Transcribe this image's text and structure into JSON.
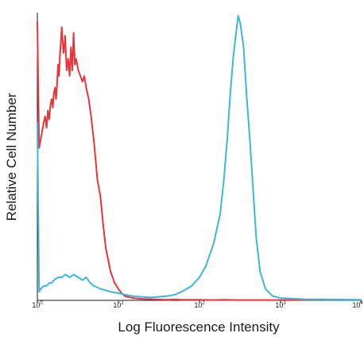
{
  "chart_data": {
    "type": "line",
    "title": "",
    "xlabel": "Log Fluorescence Intensity",
    "ylabel": "Relative Cell Number",
    "x_scale": "log",
    "xlim": [
      1,
      10000
    ],
    "ylim": [
      0,
      1.0
    ],
    "grid": false,
    "legend": "none",
    "x_ticks": [
      {
        "base": "10",
        "exp": "0"
      },
      {
        "base": "10",
        "exp": "1"
      },
      {
        "base": "10",
        "exp": "2"
      },
      {
        "base": "10",
        "exp": "3"
      },
      {
        "base": "10",
        "exp": "4"
      }
    ],
    "series": [
      {
        "color": "#e8353a",
        "x": [
          1.0,
          1.05,
          1.1,
          1.15,
          1.2,
          1.25,
          1.3,
          1.35,
          1.4,
          1.45,
          1.5,
          1.55,
          1.6,
          1.65,
          1.7,
          1.75,
          1.8,
          1.85,
          1.9,
          2.0,
          2.05,
          2.1,
          2.15,
          2.2,
          2.25,
          2.3,
          2.4,
          2.5,
          2.6,
          2.7,
          2.8,
          2.9,
          3.0,
          3.2,
          3.4,
          3.6,
          3.8,
          4.0,
          4.3,
          4.6,
          5.0,
          5.5,
          6.0,
          6.5,
          7.0,
          8.0,
          9.0,
          10,
          11,
          12,
          14,
          16,
          20,
          25,
          30,
          40,
          50,
          60,
          80,
          100,
          150,
          200,
          300,
          500,
          1000,
          2000,
          5000,
          10000
        ],
        "values": [
          0.97,
          0.53,
          0.56,
          0.59,
          0.62,
          0.64,
          0.6,
          0.66,
          0.63,
          0.68,
          0.7,
          0.67,
          0.72,
          0.74,
          0.7,
          0.75,
          0.82,
          0.78,
          0.85,
          0.95,
          0.9,
          0.86,
          0.88,
          0.92,
          0.86,
          0.8,
          0.84,
          0.78,
          0.88,
          0.8,
          0.93,
          0.82,
          0.84,
          0.8,
          0.78,
          0.76,
          0.78,
          0.74,
          0.7,
          0.64,
          0.55,
          0.42,
          0.36,
          0.26,
          0.18,
          0.1,
          0.06,
          0.04,
          0.025,
          0.015,
          0.01,
          0.007,
          0.005,
          0.004,
          0.003,
          0.002,
          0.003,
          0.002,
          0.002,
          0.002,
          0.001,
          0.002,
          0.001,
          0.001,
          0.001,
          0.001,
          0.001,
          0.001
        ]
      },
      {
        "color": "#3ab6e0",
        "x": [
          1.0,
          1.05,
          1.1,
          1.2,
          1.3,
          1.4,
          1.5,
          1.6,
          1.8,
          2.0,
          2.2,
          2.5,
          2.8,
          3.2,
          3.6,
          4.0,
          4.5,
          5.0,
          6.0,
          7.0,
          8.0,
          10,
          12,
          15,
          20,
          25,
          30,
          40,
          50,
          60,
          80,
          100,
          120,
          150,
          180,
          200,
          220,
          240,
          260,
          280,
          300,
          320,
          350,
          380,
          420,
          460,
          500,
          560,
          650,
          800,
          1000,
          1300,
          2000,
          5000,
          10000
        ],
        "values": [
          0.62,
          0.03,
          0.04,
          0.05,
          0.05,
          0.06,
          0.06,
          0.07,
          0.08,
          0.08,
          0.09,
          0.08,
          0.09,
          0.08,
          0.07,
          0.08,
          0.06,
          0.05,
          0.04,
          0.035,
          0.03,
          0.025,
          0.02,
          0.015,
          0.012,
          0.01,
          0.012,
          0.015,
          0.02,
          0.03,
          0.05,
          0.08,
          0.12,
          0.2,
          0.3,
          0.42,
          0.56,
          0.72,
          0.84,
          0.92,
          0.99,
          0.96,
          0.88,
          0.72,
          0.55,
          0.38,
          0.22,
          0.1,
          0.04,
          0.015,
          0.008,
          0.006,
          0.004,
          0.003,
          0.002
        ]
      }
    ]
  }
}
